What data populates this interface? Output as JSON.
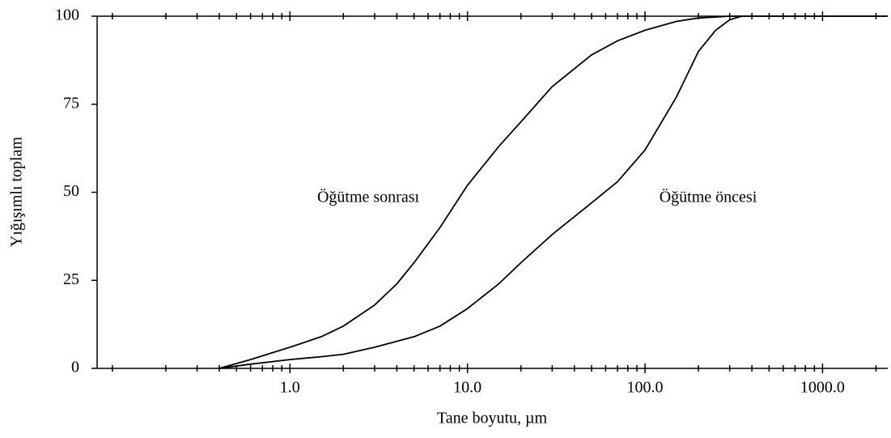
{
  "chart_data": {
    "type": "line",
    "xlabel": "Tane boyutu, µm",
    "ylabel": "Yığışımlı toplam",
    "xscale": "log",
    "xlim": [
      0.082,
      2330
    ],
    "ylim": [
      0,
      100
    ],
    "yticks": [
      0,
      25,
      50,
      75,
      100
    ],
    "xticks": [
      {
        "value": 1,
        "label": "1.0"
      },
      {
        "value": 10,
        "label": "10.0"
      },
      {
        "value": 100,
        "label": "100.0"
      },
      {
        "value": 1000,
        "label": "1000.0"
      }
    ],
    "xminorticks": [
      0.1,
      0.2,
      0.3,
      0.4,
      0.5,
      0.6,
      0.7,
      0.8,
      0.9,
      2,
      3,
      4,
      5,
      6,
      7,
      8,
      9,
      20,
      30,
      40,
      50,
      60,
      70,
      80,
      90,
      200,
      300,
      400,
      500,
      600,
      700,
      800,
      900,
      2000
    ],
    "annotations": [
      "Öğütme sonrası",
      "Öğütme öncesi"
    ],
    "series": [
      {
        "name": "Öğütme sonrası",
        "color": "#000000",
        "x": [
          0.4,
          0.6,
          1,
          1.5,
          2,
          3,
          4,
          5,
          7,
          10,
          15,
          20,
          30,
          50,
          70,
          100,
          150,
          200,
          300,
          2330
        ],
        "values": [
          0,
          2.5,
          6,
          9,
          12,
          18,
          24,
          30,
          40,
          52,
          63,
          70,
          80,
          89,
          93,
          96,
          98.5,
          99.5,
          100,
          100
        ]
      },
      {
        "name": "Öğütme öncesi",
        "color": "#000000",
        "x": [
          0.4,
          0.6,
          1,
          1.5,
          2,
          3,
          5,
          7,
          10,
          15,
          20,
          30,
          50,
          70,
          100,
          150,
          200,
          250,
          300,
          350
        ],
        "values": [
          0,
          1.2,
          2.5,
          3.3,
          4,
          6,
          9,
          12,
          17,
          24,
          30,
          38,
          47,
          53,
          62,
          77,
          90,
          96,
          99,
          100
        ]
      }
    ]
  }
}
